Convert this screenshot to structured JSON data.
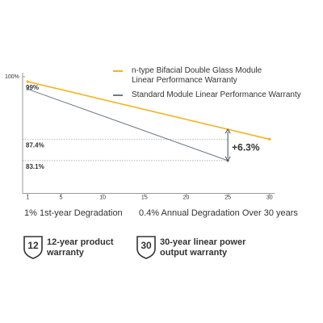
{
  "chart_data": {
    "type": "line",
    "series": [
      {
        "name": "n-type Bifacial Double Glass Module Linear Performance Warranty",
        "color": "#f5b31e",
        "x": [
          1,
          30
        ],
        "values": [
          99,
          87.4
        ]
      },
      {
        "name": "Standard Module Linear Performance Warranty",
        "color": "#6f7a84",
        "x": [
          1,
          25
        ],
        "values": [
          97.5,
          83.1
        ]
      }
    ],
    "xlim": [
      0.4,
      30.6
    ],
    "xticks": [
      1,
      5,
      10,
      15,
      20,
      25,
      30
    ],
    "ylim": [
      76.5,
      100.8
    ],
    "yticks": [
      {
        "value": 100,
        "label": "100%"
      }
    ],
    "annotations": [
      {
        "value": 99,
        "label": "99%"
      },
      {
        "value": 87.4,
        "label": "87.4%"
      },
      {
        "value": 83.1,
        "label": "83.1%"
      }
    ],
    "delta": {
      "x": 25,
      "value": 6.3,
      "label": "+6.3%"
    },
    "captions": [
      "1% 1st-year Degradation",
      "0.4% Annual Degradation Over 30 years"
    ]
  },
  "badges": [
    {
      "number": "12",
      "text": "12-year product warranty"
    },
    {
      "number": "30",
      "text": "30-year linear power output warranty"
    }
  ]
}
